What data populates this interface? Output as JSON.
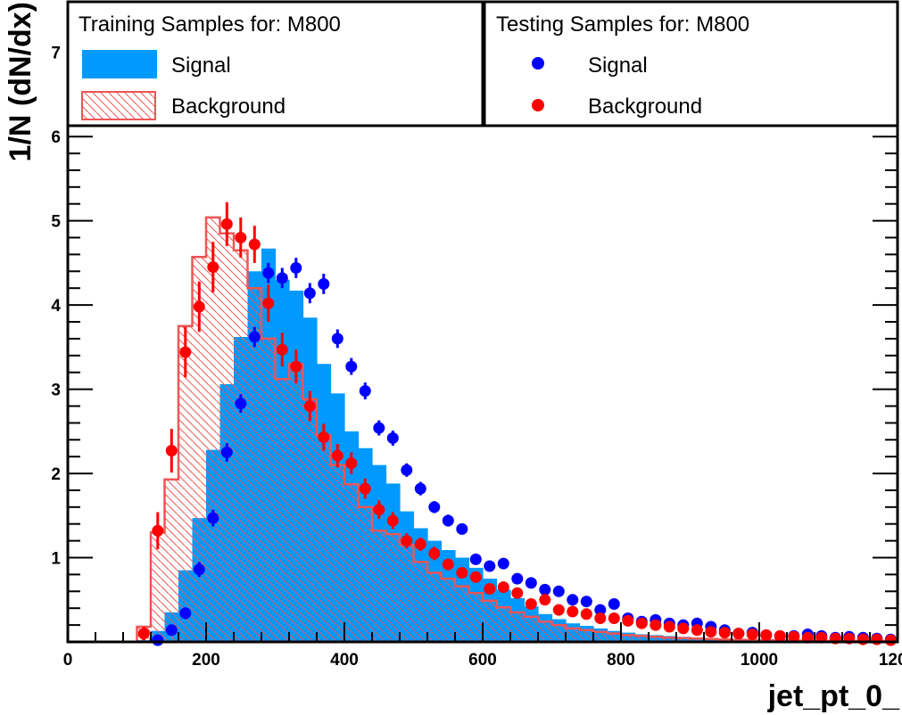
{
  "chart_data": {
    "type": "histogram",
    "xlabel": "jet_pt_0_",
    "ylabel": "1/N (dN/dx)",
    "xlim": [
      0,
      1200
    ],
    "ylim": [
      0,
      7.6
    ],
    "x_ticks": [
      "0",
      "200",
      "400",
      "600",
      "800",
      "1000",
      "1200"
    ],
    "y_ticks": [
      "1",
      "2",
      "3",
      "4",
      "5",
      "6",
      "7"
    ],
    "x_tick_values": [
      0,
      200,
      400,
      600,
      800,
      1000,
      1200
    ],
    "y_tick_values": [
      1,
      2,
      3,
      4,
      5,
      6,
      7
    ],
    "legend": {
      "training_title": "Training Samples for: M800",
      "testing_title": "Testing Samples for: M800",
      "training_signal": "Signal",
      "training_background": "Background",
      "testing_signal": "Signal",
      "testing_background": "Background"
    },
    "colors": {
      "signal_fill": "#0099ff",
      "background_line": "#ee5555",
      "signal_points": "#0000ff",
      "background_points": "#ff0000"
    },
    "bin_edges": [
      0,
      1200
    ],
    "bin_count": 60,
    "series": [
      {
        "name": "Signal",
        "kind": "filled-histogram",
        "values": [
          0,
          0,
          0,
          0,
          0,
          0.02,
          0.13,
          0.35,
          0.85,
          1.47,
          2.28,
          3.06,
          3.62,
          4.4,
          4.67,
          4.3,
          4.17,
          3.85,
          3.3,
          2.95,
          2.5,
          2.3,
          2.1,
          1.88,
          1.55,
          1.35,
          1.2,
          1.09,
          1.0,
          0.88,
          0.75,
          0.62,
          0.52,
          0.42,
          0.33,
          0.27,
          0.22,
          0.19,
          0.16,
          0.13,
          0.11,
          0.09,
          0.08,
          0.07,
          0.06,
          0.05,
          0.04,
          0.035,
          0.03,
          0.025,
          0.02,
          0.018,
          0.015,
          0.013,
          0.011,
          0.01,
          0.009,
          0.008,
          0.007,
          0.006
        ]
      },
      {
        "name": "Background",
        "kind": "hatched-histogram",
        "values": [
          0,
          0,
          0,
          0,
          0,
          0.18,
          1.3,
          1.93,
          3.75,
          4.57,
          5.04,
          4.85,
          4.65,
          4.2,
          3.6,
          3.12,
          3.3,
          2.88,
          2.45,
          2.1,
          1.87,
          1.6,
          1.32,
          1.28,
          1.15,
          0.95,
          0.82,
          0.75,
          0.66,
          0.58,
          0.49,
          0.41,
          0.35,
          0.3,
          0.24,
          0.2,
          0.16,
          0.14,
          0.12,
          0.1,
          0.08,
          0.07,
          0.06,
          0.05,
          0.045,
          0.04,
          0.035,
          0.03,
          0.025,
          0.022,
          0.02,
          0.018,
          0.016,
          0.014,
          0.012,
          0.011,
          0.01,
          0.009,
          0.008,
          0.007
        ]
      },
      {
        "name": "Signal",
        "kind": "points",
        "values": [
          null,
          null,
          null,
          null,
          null,
          null,
          0.02,
          0.14,
          0.34,
          0.86,
          1.47,
          2.25,
          2.83,
          3.62,
          4.38,
          4.32,
          4.44,
          4.14,
          4.25,
          3.6,
          3.27,
          2.98,
          2.54,
          2.42,
          2.04,
          1.82,
          1.6,
          1.44,
          1.34,
          0.98,
          0.9,
          0.93,
          0.75,
          0.7,
          0.62,
          0.6,
          0.5,
          0.48,
          0.38,
          0.45,
          0.28,
          0.24,
          0.26,
          0.22,
          0.2,
          0.22,
          0.18,
          0.14,
          0.1,
          0.11,
          0.08,
          0.07,
          0.07,
          0.09,
          0.07,
          0.05,
          0.06,
          0.05,
          0.04,
          0.03
        ],
        "errors": [
          0,
          0,
          0,
          0,
          0,
          0,
          0.02,
          0.05,
          0.07,
          0.09,
          0.1,
          0.11,
          0.11,
          0.12,
          0.12,
          0.12,
          0.12,
          0.12,
          0.12,
          0.11,
          0.1,
          0.1,
          0.09,
          0.09,
          0.08,
          0.08,
          0.07,
          0.07,
          0.06,
          0.05,
          0.05,
          0.05,
          0.04,
          0.04,
          0.04,
          0.04,
          0.03,
          0.03,
          0.03,
          0.03,
          0.02,
          0.02,
          0.02,
          0.02,
          0.02,
          0.02,
          0.02,
          0.02,
          0.01,
          0.01,
          0.01,
          0.01,
          0.01,
          0.01,
          0.01,
          0.01,
          0.01,
          0.01,
          0.01,
          0.01
        ]
      },
      {
        "name": "Background",
        "kind": "points",
        "values": [
          null,
          null,
          null,
          null,
          null,
          0.1,
          1.32,
          2.27,
          3.44,
          3.98,
          4.45,
          4.96,
          4.8,
          4.72,
          4.02,
          3.47,
          3.27,
          2.8,
          2.43,
          2.21,
          2.12,
          1.82,
          1.57,
          1.44,
          1.2,
          1.16,
          1.05,
          0.92,
          0.82,
          0.77,
          0.63,
          0.65,
          0.58,
          0.45,
          0.5,
          0.38,
          0.36,
          0.33,
          0.28,
          0.28,
          0.25,
          0.22,
          0.2,
          0.18,
          0.16,
          0.14,
          0.12,
          0.11,
          0.1,
          0.09,
          0.08,
          0.07,
          0.06,
          0.05,
          0.05,
          0.04,
          0.04,
          0.03,
          0.03,
          0.02
        ],
        "errors": [
          0,
          0,
          0,
          0,
          0,
          0.08,
          0.22,
          0.26,
          0.3,
          0.3,
          0.3,
          0.26,
          0.24,
          0.22,
          0.22,
          0.2,
          0.2,
          0.18,
          0.16,
          0.14,
          0.13,
          0.12,
          0.11,
          0.1,
          0.09,
          0.08,
          0.08,
          0.07,
          0.06,
          0.06,
          0.05,
          0.05,
          0.05,
          0.04,
          0.04,
          0.04,
          0.03,
          0.03,
          0.03,
          0.03,
          0.03,
          0.02,
          0.02,
          0.02,
          0.02,
          0.02,
          0.02,
          0.02,
          0.02,
          0.02,
          0.01,
          0.01,
          0.01,
          0.01,
          0.01,
          0.01,
          0.01,
          0.01,
          0.01,
          0.01
        ]
      }
    ]
  }
}
